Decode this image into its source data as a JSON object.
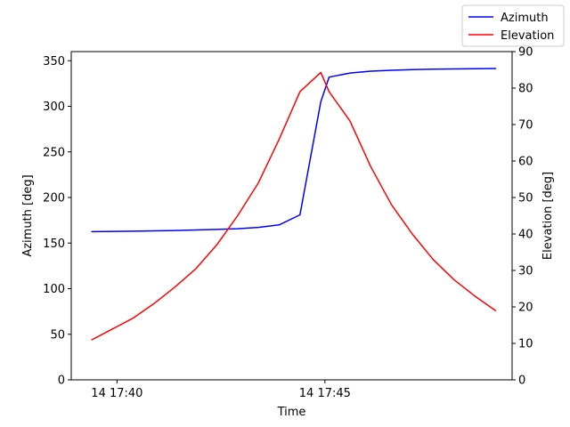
{
  "chart_data": {
    "type": "line",
    "title": "",
    "xlabel": "Time",
    "ylabel_left": "Azimuth [deg]",
    "ylabel_right": "Elevation [deg]",
    "x_unit": "minutes after 17:00 on day 14",
    "xlim": [
      38.9,
      49.5
    ],
    "ylim_left": [
      0,
      360
    ],
    "ylim_right": [
      0,
      90
    ],
    "x_ticks": [
      {
        "value": 40,
        "label": "14 17:40"
      },
      {
        "value": 45,
        "label": "14 17:45"
      }
    ],
    "y_ticks_left": [
      0,
      50,
      100,
      150,
      200,
      250,
      300,
      350
    ],
    "y_ticks_right": [
      0,
      10,
      20,
      30,
      40,
      50,
      60,
      70,
      80,
      90
    ],
    "legend_position": "top-right (outside axes)",
    "grid": false,
    "series": [
      {
        "name": "Azimuth",
        "axis": "left",
        "color": "#0000ff",
        "x": [
          39.4,
          40.4,
          41.4,
          42.4,
          42.9,
          43.4,
          43.9,
          44.4,
          44.9,
          45.1,
          45.6,
          46.1,
          46.6,
          47.1,
          47.6,
          48.1,
          48.6,
          49.1
        ],
        "values": [
          162.5,
          163,
          163.8,
          165,
          165.8,
          167.2,
          170,
          181,
          305,
          332,
          336.5,
          338.5,
          339.5,
          340.2,
          340.7,
          341,
          341.3,
          341.5
        ]
      },
      {
        "name": "Elevation",
        "axis": "right",
        "color": "#ff0000",
        "x": [
          39.4,
          39.9,
          40.4,
          40.9,
          41.4,
          41.9,
          42.4,
          42.9,
          43.4,
          43.9,
          44.4,
          44.9,
          45.1,
          45.6,
          46.1,
          46.6,
          47.1,
          47.6,
          48.1,
          48.6,
          49.1
        ],
        "values": [
          11,
          14,
          17,
          21,
          25.5,
          30.5,
          37,
          45,
          54,
          66,
          79,
          84.3,
          79,
          71,
          58.5,
          48,
          40,
          33,
          27.5,
          23,
          19
        ]
      }
    ]
  }
}
